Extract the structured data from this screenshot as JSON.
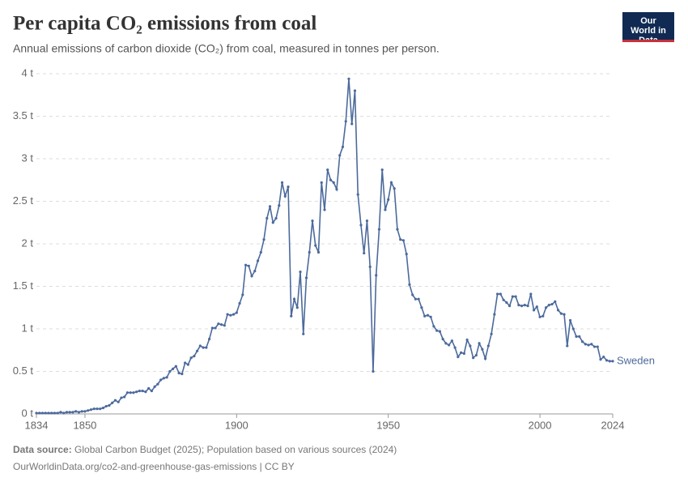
{
  "chart_data": {
    "type": "line",
    "title": "Per capita CO₂ emissions from coal",
    "subtitle": "Annual emissions of carbon dioxide (CO₂) from coal, measured in tonnes per person.",
    "logo": "Our World in Data",
    "source_label": "Data source:",
    "source": "Global Carbon Budget (2025); Population based on various sources (2024)",
    "url": "OurWorldinData.org/co2-and-greenhouse-gas-emissions | CC BY",
    "xlim": [
      1834,
      2024
    ],
    "xticks": [
      1834,
      1850,
      1900,
      1950,
      2000,
      2024
    ],
    "ylim": [
      0,
      4
    ],
    "yticks": [
      {
        "value": 0,
        "label": "0 t"
      },
      {
        "value": 0.5,
        "label": "0.5 t"
      },
      {
        "value": 1,
        "label": "1 t"
      },
      {
        "value": 1.5,
        "label": "1.5 t"
      },
      {
        "value": 2,
        "label": "2 t"
      },
      {
        "value": 2.5,
        "label": "2.5 t"
      },
      {
        "value": 3,
        "label": "3 t"
      },
      {
        "value": 3.5,
        "label": "3.5 t"
      },
      {
        "value": 4,
        "label": "4 t"
      }
    ],
    "grid": true,
    "x": [
      1834,
      1835,
      1836,
      1837,
      1838,
      1839,
      1840,
      1841,
      1842,
      1843,
      1844,
      1845,
      1846,
      1847,
      1848,
      1849,
      1850,
      1851,
      1852,
      1853,
      1854,
      1855,
      1856,
      1857,
      1858,
      1859,
      1860,
      1861,
      1862,
      1863,
      1864,
      1865,
      1866,
      1867,
      1868,
      1869,
      1870,
      1871,
      1872,
      1873,
      1874,
      1875,
      1876,
      1877,
      1878,
      1879,
      1880,
      1881,
      1882,
      1883,
      1884,
      1885,
      1886,
      1887,
      1888,
      1889,
      1890,
      1891,
      1892,
      1893,
      1894,
      1895,
      1896,
      1897,
      1898,
      1899,
      1900,
      1901,
      1902,
      1903,
      1904,
      1905,
      1906,
      1907,
      1908,
      1909,
      1910,
      1911,
      1912,
      1913,
      1914,
      1915,
      1916,
      1917,
      1918,
      1919,
      1920,
      1921,
      1922,
      1923,
      1924,
      1925,
      1926,
      1927,
      1928,
      1929,
      1930,
      1931,
      1932,
      1933,
      1934,
      1935,
      1936,
      1937,
      1938,
      1939,
      1940,
      1941,
      1942,
      1943,
      1944,
      1945,
      1946,
      1947,
      1948,
      1949,
      1950,
      1951,
      1952,
      1953,
      1954,
      1955,
      1956,
      1957,
      1958,
      1959,
      1960,
      1961,
      1962,
      1963,
      1964,
      1965,
      1966,
      1967,
      1968,
      1969,
      1970,
      1971,
      1972,
      1973,
      1974,
      1975,
      1976,
      1977,
      1978,
      1979,
      1980,
      1981,
      1982,
      1983,
      1984,
      1985,
      1986,
      1987,
      1988,
      1989,
      1990,
      1991,
      1992,
      1993,
      1994,
      1995,
      1996,
      1997,
      1998,
      1999,
      2000,
      2001,
      2002,
      2003,
      2004,
      2005,
      2006,
      2007,
      2008,
      2009,
      2010,
      2011,
      2012,
      2013,
      2014,
      2015,
      2016,
      2017,
      2018,
      2019,
      2020,
      2021,
      2022,
      2023,
      2024
    ],
    "series": [
      {
        "name": "Sweden",
        "color": "#4c6a9c",
        "values": [
          0.01,
          0.01,
          0.01,
          0.01,
          0.01,
          0.01,
          0.01,
          0.01,
          0.02,
          0.01,
          0.02,
          0.02,
          0.02,
          0.03,
          0.02,
          0.03,
          0.03,
          0.04,
          0.05,
          0.06,
          0.06,
          0.06,
          0.07,
          0.09,
          0.1,
          0.13,
          0.16,
          0.14,
          0.19,
          0.2,
          0.25,
          0.25,
          0.25,
          0.26,
          0.27,
          0.27,
          0.26,
          0.3,
          0.27,
          0.32,
          0.35,
          0.4,
          0.42,
          0.43,
          0.5,
          0.53,
          0.56,
          0.48,
          0.47,
          0.6,
          0.58,
          0.66,
          0.68,
          0.74,
          0.8,
          0.78,
          0.78,
          0.88,
          1.01,
          1.01,
          1.06,
          1.05,
          1.04,
          1.17,
          1.16,
          1.17,
          1.19,
          1.3,
          1.4,
          1.75,
          1.74,
          1.62,
          1.68,
          1.8,
          1.9,
          2.05,
          2.3,
          2.44,
          2.25,
          2.3,
          2.45,
          2.72,
          2.56,
          2.67,
          1.15,
          1.35,
          1.25,
          1.67,
          0.94,
          1.6,
          1.9,
          2.27,
          1.98,
          1.9,
          2.72,
          2.4,
          2.87,
          2.75,
          2.72,
          2.64,
          3.04,
          3.14,
          3.44,
          3.94,
          3.41,
          3.8,
          2.58,
          2.22,
          1.89,
          2.27,
          1.73,
          0.5,
          1.63,
          2.17,
          2.87,
          2.4,
          2.52,
          2.72,
          2.65,
          2.17,
          2.05,
          2.04,
          1.88,
          1.52,
          1.4,
          1.35,
          1.35,
          1.25,
          1.15,
          1.16,
          1.14,
          1.03,
          0.98,
          0.97,
          0.88,
          0.83,
          0.81,
          0.86,
          0.78,
          0.67,
          0.72,
          0.71,
          0.87,
          0.8,
          0.66,
          0.69,
          0.83,
          0.76,
          0.65,
          0.8,
          0.94,
          1.17,
          1.41,
          1.41,
          1.34,
          1.31,
          1.27,
          1.38,
          1.38,
          1.28,
          1.27,
          1.28,
          1.27,
          1.41,
          1.22,
          1.26,
          1.14,
          1.15,
          1.25,
          1.28,
          1.29,
          1.32,
          1.22,
          1.18,
          1.17,
          0.8,
          1.1,
          1.0,
          0.91,
          0.91,
          0.85,
          0.82,
          0.81,
          0.82,
          0.79,
          0.79,
          0.64,
          0.67,
          0.63,
          0.62,
          0.62
        ]
      }
    ]
  }
}
